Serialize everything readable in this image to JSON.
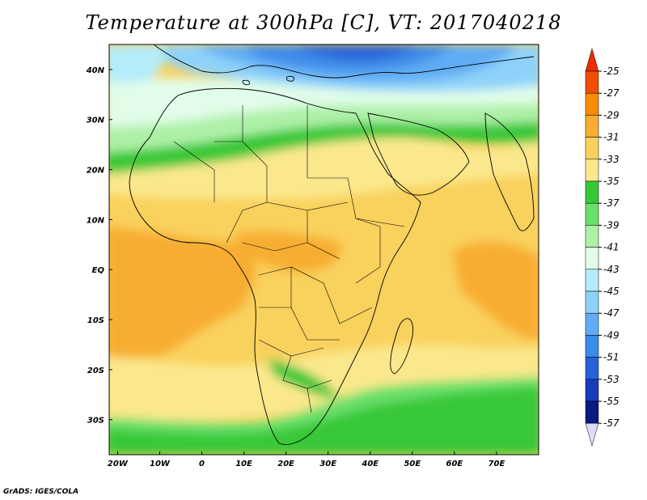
{
  "title": "Temperature at 300hPa [C], VT: 2017040218",
  "credit": "GrADS: IGES/COLA",
  "map": {
    "lon_range": [
      -22,
      80
    ],
    "lat_range": [
      -37,
      45
    ],
    "lat_ticks": [
      {
        "value": 40,
        "label": "40N"
      },
      {
        "value": 30,
        "label": "30N"
      },
      {
        "value": 20,
        "label": "20N"
      },
      {
        "value": 10,
        "label": "10N"
      },
      {
        "value": 0,
        "label": "EQ"
      },
      {
        "value": -10,
        "label": "10S"
      },
      {
        "value": -20,
        "label": "20S"
      },
      {
        "value": -30,
        "label": "30S"
      }
    ],
    "lon_ticks": [
      {
        "value": -20,
        "label": "20W"
      },
      {
        "value": -10,
        "label": "10W"
      },
      {
        "value": 0,
        "label": "0"
      },
      {
        "value": 10,
        "label": "10E"
      },
      {
        "value": 20,
        "label": "20E"
      },
      {
        "value": 30,
        "label": "30E"
      },
      {
        "value": 40,
        "label": "40E"
      },
      {
        "value": 50,
        "label": "50E"
      },
      {
        "value": 60,
        "label": "60E"
      },
      {
        "value": 70,
        "label": "70E"
      }
    ]
  },
  "colorbar": {
    "levels": [
      "-25",
      "-27",
      "-29",
      "-31",
      "-33",
      "-35",
      "-37",
      "-39",
      "-41",
      "-43",
      "-45",
      "-47",
      "-49",
      "-51",
      "-53",
      "-55",
      "-57"
    ],
    "colors": [
      "#f24e05",
      "#f98b05",
      "#f7ad32",
      "#f9d15d",
      "#fbe88d",
      "#37c837",
      "#6ae06a",
      "#aef0a7",
      "#e1fde9",
      "#b4ecfa",
      "#8ed2f9",
      "#61acf4",
      "#3c8ae9",
      "#2760d8",
      "#173bbb",
      "#091a80"
    ],
    "top_arrow_color": "#ee2b04",
    "bottom_arrow_color": "#dcdcf5"
  }
}
